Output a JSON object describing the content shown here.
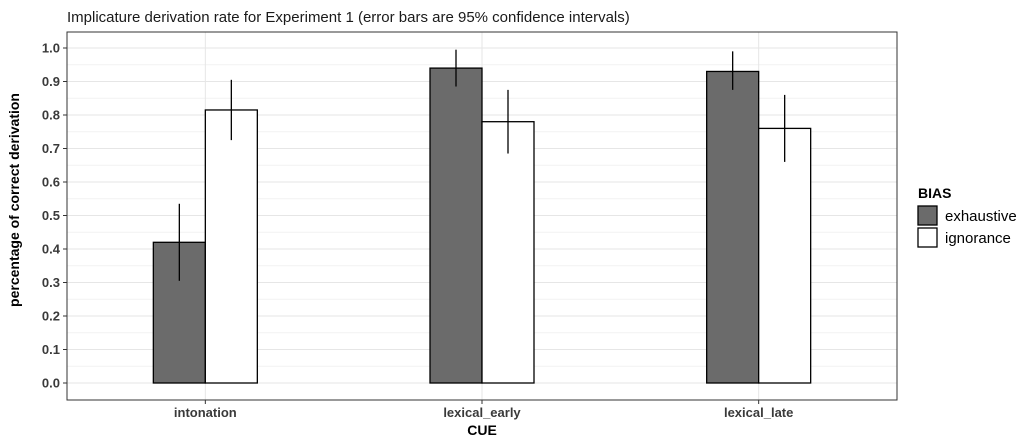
{
  "chart_data": {
    "type": "bar",
    "title": "Implicature derivation rate for Experiment 1 (error bars are 95% confidence intervals)",
    "xlabel": "CUE",
    "ylabel": "percentage of correct derivation",
    "ylim": [
      0.0,
      1.0
    ],
    "yticks": [
      "0.0",
      "0.1",
      "0.2",
      "0.3",
      "0.4",
      "0.5",
      "0.6",
      "0.7",
      "0.8",
      "0.9",
      "1.0"
    ],
    "categories": [
      "intonation",
      "lexical_early",
      "lexical_late"
    ],
    "legend": {
      "title": "BIAS",
      "placement": "right"
    },
    "grid": true,
    "series": [
      {
        "name": "exhaustive",
        "color": "#6b6b6b",
        "values": [
          0.42,
          0.94,
          0.93
        ],
        "ci_low": [
          0.305,
          0.885,
          0.875
        ],
        "ci_high": [
          0.535,
          0.995,
          0.99
        ]
      },
      {
        "name": "ignorance",
        "color": "#ffffff",
        "values": [
          0.815,
          0.78,
          0.76
        ],
        "ci_low": [
          0.725,
          0.685,
          0.66
        ],
        "ci_high": [
          0.905,
          0.875,
          0.86
        ]
      }
    ]
  }
}
